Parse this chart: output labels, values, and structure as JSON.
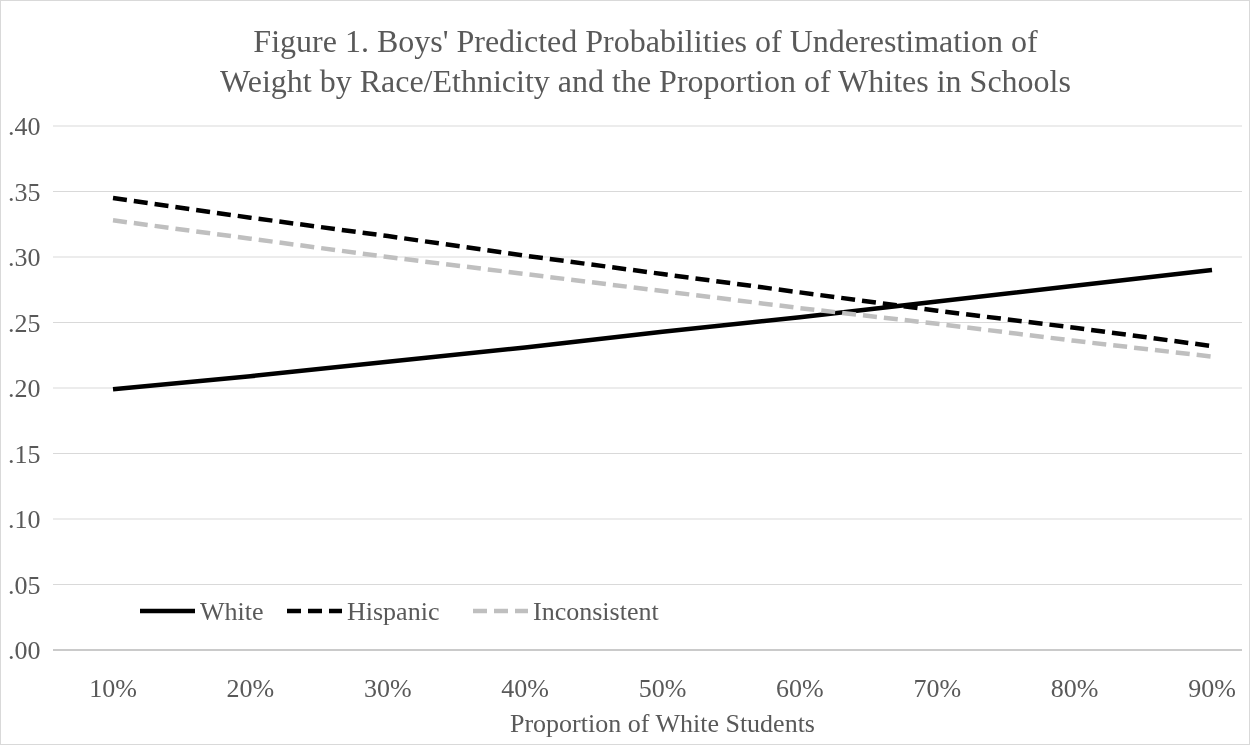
{
  "chart_data": {
    "type": "line",
    "title": "Figure 1. Boys' Predicted Probabilities of Underestimation of Weight by Race/Ethnicity and the Proportion of Whites in Schools",
    "xlabel": "Proportion of White Students",
    "categories": [
      "10%",
      "20%",
      "30%",
      "40%",
      "50%",
      "60%",
      "70%",
      "80%",
      "90%"
    ],
    "series": [
      {
        "name": "White",
        "color": "#000000",
        "line_style": "solid",
        "values": [
          0.199,
          0.209,
          0.22,
          0.231,
          0.243,
          0.254,
          0.266,
          0.278,
          0.29
        ]
      },
      {
        "name": "Hispanic",
        "color": "#000000",
        "line_style": "dashed",
        "values": [
          0.345,
          0.33,
          0.316,
          0.301,
          0.287,
          0.273,
          0.259,
          0.246,
          0.232
        ]
      },
      {
        "name": "Inconsistent",
        "color": "#bfbfbf",
        "line_style": "dashed",
        "values": [
          0.328,
          0.314,
          0.3,
          0.287,
          0.274,
          0.261,
          0.249,
          0.236,
          0.224
        ]
      }
    ],
    "ylim": [
      0,
      0.4
    ],
    "yticks": [
      {
        "value": 0,
        "label": ".00"
      },
      {
        "value": 0.05,
        "label": ".05"
      },
      {
        "value": 0.1,
        "label": ".10"
      },
      {
        "value": 0.15,
        "label": ".15"
      },
      {
        "value": 0.2,
        "label": ".20"
      },
      {
        "value": 0.25,
        "label": ".25"
      },
      {
        "value": 0.3,
        "label": ".30"
      },
      {
        "value": 0.35,
        "label": ".35"
      },
      {
        "value": 0.4,
        "label": ".40"
      }
    ],
    "grid": "y",
    "legend": "bottom left"
  }
}
